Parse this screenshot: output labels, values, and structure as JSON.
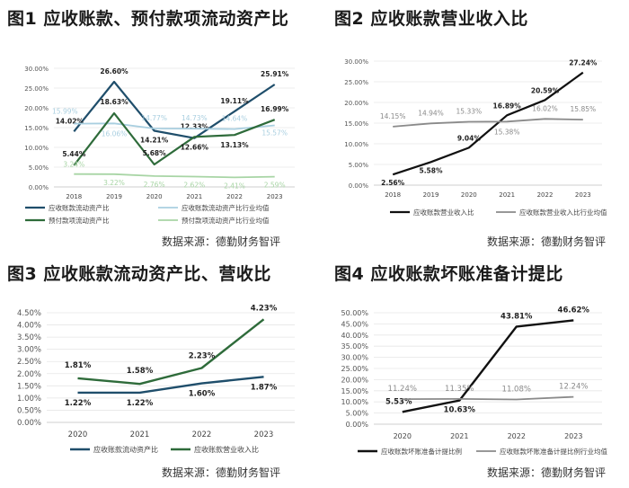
{
  "chart_data": [
    {
      "type": "line",
      "title": "图1 应收账款、预付款项流动资产比",
      "source": "数据来源：德勤财务智评",
      "x": [
        "2018",
        "2019",
        "2020",
        "2021",
        "2022",
        "2023"
      ],
      "y_ticks": [
        "0.00%",
        "5.00%",
        "10.00%",
        "15.00%",
        "20.00%",
        "25.00%",
        "30.00%"
      ],
      "ylim": [
        0,
        30
      ],
      "grid": true,
      "legend_position": "bottom",
      "series": [
        {
          "name": "应收账款流动资产比",
          "values": [
            14.02,
            26.6,
            14.21,
            12.33,
            19.11,
            25.91
          ],
          "labels": [
            "14.02%",
            "26.60%",
            "14.21%",
            "12.33%",
            "19.11%",
            "25.91%"
          ],
          "color": "#1f4e6b",
          "width": 2.2
        },
        {
          "name": "应收账款流动资产比行业均值",
          "values": [
            15.99,
            16.06,
            14.77,
            14.73,
            14.64,
            15.57
          ],
          "labels": [
            "15.99%",
            "16.06%",
            "14.77%",
            "14.73%",
            "14.64%",
            "15.57%"
          ],
          "color": "#a9cfe0",
          "width": 1.8
        },
        {
          "name": "预付款项流动资产比",
          "values": [
            5.44,
            18.63,
            5.68,
            12.66,
            13.13,
            16.99
          ],
          "labels": [
            "5.44%",
            "18.63%",
            "5.68%",
            "12.66%",
            "13.13%",
            "16.99%"
          ],
          "color": "#2e6b3a",
          "width": 2.2
        },
        {
          "name": "预付款项流动资产比行业均值",
          "values": [
            3.24,
            3.22,
            2.76,
            2.62,
            2.41,
            2.59
          ],
          "labels": [
            "3.24%",
            "3.22%",
            "2.76%",
            "2.62%",
            "2.41%",
            "2.59%"
          ],
          "color": "#a8d5a5",
          "width": 1.8
        }
      ]
    },
    {
      "type": "line",
      "title": "图2 应收账款营业收入比",
      "source": "数据来源：德勤财务智评",
      "x": [
        "2018",
        "2019",
        "2020",
        "2021",
        "2022",
        "2023"
      ],
      "y_ticks": [
        "0.00%",
        "5.00%",
        "10.00%",
        "15.00%",
        "20.00%",
        "25.00%",
        "30.00%"
      ],
      "ylim": [
        0,
        30
      ],
      "grid": true,
      "legend_position": "bottom",
      "series": [
        {
          "name": "应收账款营业收入比",
          "values": [
            2.56,
            5.58,
            9.04,
            16.89,
            20.59,
            27.24
          ],
          "labels": [
            "2.56%",
            "5.58%",
            "9.04%",
            "16.89%",
            "20.59%",
            "27.24%"
          ],
          "color": "#111111",
          "width": 2.2
        },
        {
          "name": "应收账款营业收入比行业均值",
          "values": [
            14.15,
            14.94,
            15.33,
            15.38,
            16.02,
            15.85
          ],
          "labels": [
            "14.15%",
            "14.94%",
            "15.33%",
            "15.38%",
            "16.02%",
            "15.85%"
          ],
          "color": "#8a8a8a",
          "width": 1.8
        }
      ]
    },
    {
      "type": "line",
      "title": "图3 应收账款流动资产比、营收比",
      "source": "数据来源：德勤财务智评",
      "x": [
        "2020",
        "2021",
        "2022",
        "2023"
      ],
      "y_ticks": [
        "0.00%",
        "0.50%",
        "1.00%",
        "1.50%",
        "2.00%",
        "2.50%",
        "3.00%",
        "3.50%",
        "4.00%",
        "4.50%"
      ],
      "ylim": [
        0,
        4.5
      ],
      "grid": true,
      "legend_position": "bottom",
      "series": [
        {
          "name": "应收账款流动资产比",
          "values": [
            1.22,
            1.22,
            1.6,
            1.87
          ],
          "labels": [
            "1.22%",
            "1.22%",
            "1.60%",
            "1.87%"
          ],
          "color": "#1f4e6b",
          "width": 2.4
        },
        {
          "name": "应收账款营业收入比",
          "values": [
            1.81,
            1.58,
            2.23,
            4.23
          ],
          "labels": [
            "1.81%",
            "1.58%",
            "2.23%",
            "4.23%"
          ],
          "color": "#2e6b3a",
          "width": 2.4
        }
      ]
    },
    {
      "type": "line",
      "title": "图4 应收账款坏账准备计提比",
      "source": "数据来源：德勤财务智评",
      "x": [
        "2020",
        "2021",
        "2022",
        "2023"
      ],
      "y_ticks": [
        "0.00%",
        "5.00%",
        "10.00%",
        "15.00%",
        "20.00%",
        "25.00%",
        "30.00%",
        "35.00%",
        "40.00%",
        "45.00%",
        "50.00%"
      ],
      "ylim": [
        0,
        50
      ],
      "grid": true,
      "legend_position": "bottom",
      "series": [
        {
          "name": "应收账款坏账准备计提比例",
          "values": [
            5.53,
            10.63,
            43.81,
            46.62
          ],
          "labels": [
            "5.53%",
            "10.63%",
            "43.81%",
            "46.62%"
          ],
          "color": "#111111",
          "width": 2.4
        },
        {
          "name": "应收账款坏账准备计提比例行业均值",
          "values": [
            11.24,
            11.35,
            11.08,
            12.24
          ],
          "labels": [
            "11.24%",
            "11.35%",
            "11.08%",
            "12.24%"
          ],
          "color": "#8a8a8a",
          "width": 1.8
        }
      ]
    }
  ]
}
